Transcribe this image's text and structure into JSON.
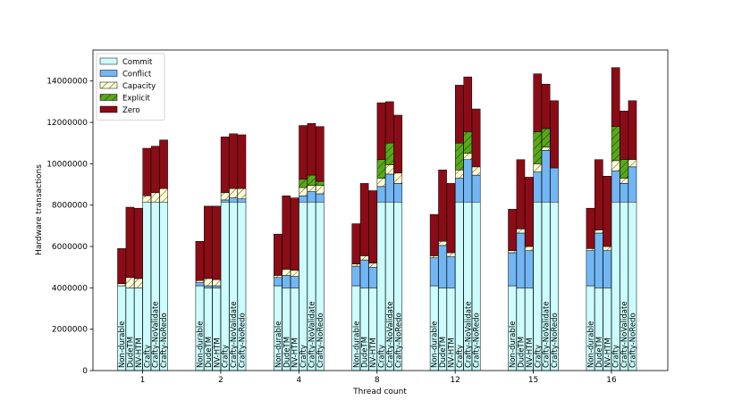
{
  "chart_data": {
    "type": "bar",
    "subtype": "grouped-stacked",
    "title": "",
    "xlabel": "Thread count",
    "ylabel": "Hardware transactions",
    "ylim": [
      0,
      15500000
    ],
    "yticks": [
      0,
      2000000,
      4000000,
      6000000,
      8000000,
      10000000,
      12000000,
      14000000
    ],
    "ytick_labels": [
      "0",
      "2000000",
      "4000000",
      "6000000",
      "8000000",
      "10000000",
      "12000000",
      "14000000"
    ],
    "grid": false,
    "legend_position": "top-left",
    "groups": [
      "1",
      "2",
      "4",
      "8",
      "12",
      "15",
      "16"
    ],
    "systems": [
      "Non-durable",
      "DudeTM",
      "NV-HTM",
      "Crafty",
      "Crafty-NoValidate",
      "Crafty-NoRedo"
    ],
    "components": [
      {
        "name": "Commit",
        "color": "#ccfcfc",
        "hatch": "none"
      },
      {
        "name": "Conflict",
        "color": "#73b6f4",
        "hatch": "none"
      },
      {
        "name": "Capacity",
        "color": "#fefed2",
        "hatch": "diag"
      },
      {
        "name": "Explicit",
        "color": "#58a81a",
        "hatch": "diag"
      },
      {
        "name": "Zero",
        "color": "#8b0c16",
        "hatch": "none"
      }
    ],
    "data": [
      [
        [
          4100000,
          0,
          100000,
          0,
          1700000
        ],
        [
          4000000,
          0,
          500000,
          0,
          3400000
        ],
        [
          4000000,
          0,
          450000,
          0,
          3400000
        ],
        [
          8150000,
          0,
          300000,
          0,
          2300000
        ],
        [
          8150000,
          0,
          450000,
          0,
          2250000
        ],
        [
          8150000,
          0,
          650000,
          0,
          2350000
        ]
      ],
      [
        [
          4100000,
          150000,
          100000,
          0,
          1900000
        ],
        [
          4000000,
          100000,
          350000,
          0,
          3500000
        ],
        [
          4000000,
          100000,
          300000,
          0,
          3550000
        ],
        [
          8150000,
          100000,
          350000,
          0,
          2700000
        ],
        [
          8150000,
          200000,
          450000,
          0,
          2650000
        ],
        [
          8150000,
          150000,
          500000,
          0,
          2600000
        ]
      ],
      [
        [
          4100000,
          400000,
          100000,
          0,
          2000000
        ],
        [
          4000000,
          600000,
          300000,
          0,
          3550000
        ],
        [
          4000000,
          550000,
          300000,
          0,
          3500000
        ],
        [
          8150000,
          300000,
          400000,
          400000,
          2600000
        ],
        [
          8150000,
          500000,
          300000,
          500000,
          2500000
        ],
        [
          8150000,
          400000,
          400000,
          200000,
          2650000
        ]
      ],
      [
        [
          4100000,
          950000,
          100000,
          0,
          1950000
        ],
        [
          4000000,
          1350000,
          200000,
          0,
          3500000
        ],
        [
          4000000,
          1000000,
          200000,
          0,
          3500000
        ],
        [
          8150000,
          750000,
          400000,
          900000,
          2750000
        ],
        [
          8150000,
          1350000,
          450000,
          1050000,
          2000000
        ],
        [
          8150000,
          900000,
          500000,
          0,
          2800000
        ]
      ],
      [
        [
          4100000,
          1350000,
          100000,
          0,
          2000000
        ],
        [
          4000000,
          2050000,
          200000,
          0,
          3450000
        ],
        [
          4000000,
          1500000,
          200000,
          0,
          3350000
        ],
        [
          8150000,
          1150000,
          400000,
          1300000,
          2800000
        ],
        [
          8150000,
          2050000,
          300000,
          1050000,
          2650000
        ],
        [
          8150000,
          1300000,
          400000,
          0,
          2800000
        ]
      ],
      [
        [
          4100000,
          1600000,
          100000,
          0,
          2000000
        ],
        [
          4000000,
          2650000,
          200000,
          0,
          3350000
        ],
        [
          4000000,
          1800000,
          200000,
          0,
          3350000
        ],
        [
          8150000,
          1450000,
          400000,
          1550000,
          2800000
        ],
        [
          8150000,
          2500000,
          150000,
          900000,
          2150000
        ],
        [
          8150000,
          1650000,
          0,
          0,
          3250000
        ]
      ],
      [
        [
          4100000,
          1700000,
          100000,
          0,
          1950000
        ],
        [
          4000000,
          2650000,
          150000,
          0,
          3400000
        ],
        [
          4000000,
          1800000,
          200000,
          0,
          3400000
        ],
        [
          8150000,
          1500000,
          500000,
          1650000,
          2850000
        ],
        [
          8150000,
          900000,
          250000,
          900000,
          2350000
        ],
        [
          8150000,
          1700000,
          350000,
          0,
          2850000
        ]
      ]
    ]
  }
}
